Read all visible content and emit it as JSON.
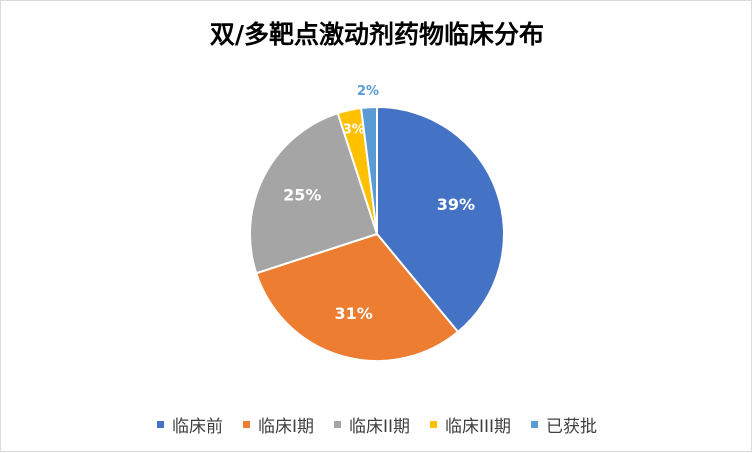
{
  "chart_data": {
    "type": "pie",
    "title": "双/多靶点激动剂药物临床分布",
    "categories": [
      "临床前",
      "临床I期",
      "临床II期",
      "临床III期",
      "已获批"
    ],
    "values": [
      39,
      31,
      25,
      3,
      2
    ],
    "labels": [
      "39%",
      "31%",
      "25%",
      "3%",
      "2%"
    ],
    "colors": [
      "#4472c4",
      "#ed7d31",
      "#a5a5a5",
      "#ffc000",
      "#5b9bd5"
    ],
    "label_colors": [
      "#ffffff",
      "#ffffff",
      "#ffffff",
      "#ffffff",
      "#5b9bd5"
    ],
    "legend_position": "bottom"
  }
}
